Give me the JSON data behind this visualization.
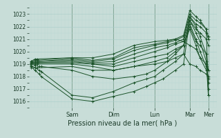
{
  "xlabel": "Pression niveau de la mer( hPa )",
  "bg_color": "#c8ddd8",
  "grid_color_major": "#a8ccc8",
  "grid_color_minor": "#b8d8d4",
  "line_color": "#1a5228",
  "ylim": [
    1015.5,
    1023.8
  ],
  "yticks": [
    1016,
    1017,
    1018,
    1019,
    1020,
    1021,
    1022,
    1023
  ],
  "xlim": [
    -0.05,
    4.5
  ],
  "day_labels": [
    "Sam",
    "Dim",
    "Lun",
    "Mar",
    "Mer"
  ],
  "day_positions": [
    1.0,
    2.0,
    3.0,
    3.85,
    4.3
  ],
  "vlines": [
    1.0,
    2.0,
    3.0,
    3.85,
    4.3
  ],
  "lines": [
    {
      "x": [
        0.0,
        0.1,
        0.2,
        0.25,
        1.0,
        1.5,
        2.0,
        2.5,
        2.8,
        3.0,
        3.2,
        3.5,
        3.7,
        3.85,
        4.0,
        4.1,
        4.25,
        4.3
      ],
      "y": [
        1018.8,
        1018.5,
        1018.2,
        1018.0,
        1016.2,
        1016.0,
        1016.4,
        1016.8,
        1017.2,
        1017.5,
        1017.8,
        1018.5,
        1019.0,
        1022.5,
        1021.5,
        1020.8,
        1019.2,
        1016.5
      ]
    },
    {
      "x": [
        0.0,
        0.1,
        0.2,
        0.25,
        1.0,
        1.5,
        2.0,
        2.5,
        2.8,
        3.0,
        3.2,
        3.5,
        3.7,
        3.85,
        4.0,
        4.1,
        4.25,
        4.3
      ],
      "y": [
        1018.9,
        1018.7,
        1018.5,
        1018.4,
        1016.5,
        1016.3,
        1016.8,
        1017.5,
        1017.8,
        1018.0,
        1018.5,
        1019.2,
        1019.8,
        1022.8,
        1022.0,
        1021.2,
        1019.8,
        1017.0
      ]
    },
    {
      "x": [
        0.0,
        0.1,
        0.2,
        0.25,
        1.0,
        1.5,
        2.0,
        2.5,
        2.8,
        3.0,
        3.3,
        3.5,
        3.7,
        3.85,
        4.0,
        4.1,
        4.25,
        4.3
      ],
      "y": [
        1019.0,
        1018.9,
        1018.8,
        1018.8,
        1018.5,
        1018.0,
        1017.8,
        1018.0,
        1018.2,
        1018.5,
        1019.2,
        1019.8,
        1020.5,
        1022.2,
        1021.0,
        1020.0,
        1018.8,
        1017.5
      ]
    },
    {
      "x": [
        0.0,
        0.1,
        0.15,
        1.0,
        1.5,
        2.0,
        2.5,
        3.0,
        3.3,
        3.5,
        3.7,
        3.85,
        4.0,
        4.1,
        4.25,
        4.3
      ],
      "y": [
        1019.0,
        1019.0,
        1019.0,
        1019.0,
        1018.8,
        1018.5,
        1018.8,
        1019.2,
        1019.5,
        1020.0,
        1020.5,
        1021.8,
        1020.5,
        1019.5,
        1018.5,
        1018.0
      ]
    },
    {
      "x": [
        0.0,
        0.1,
        0.15,
        1.0,
        1.5,
        2.0,
        2.5,
        3.0,
        3.3,
        3.5,
        3.7,
        3.85,
        4.0,
        4.1,
        4.25,
        4.3
      ],
      "y": [
        1019.0,
        1019.1,
        1019.1,
        1019.1,
        1019.0,
        1018.8,
        1019.2,
        1019.6,
        1019.8,
        1020.2,
        1020.5,
        1022.0,
        1020.8,
        1020.5,
        1019.8,
        1018.5
      ]
    },
    {
      "x": [
        0.0,
        0.1,
        0.15,
        1.0,
        1.5,
        2.0,
        2.5,
        3.0,
        3.3,
        3.5,
        3.7,
        3.85,
        4.0,
        4.1,
        4.25,
        4.3
      ],
      "y": [
        1019.1,
        1019.1,
        1019.1,
        1019.2,
        1019.0,
        1019.0,
        1019.5,
        1020.0,
        1020.3,
        1020.6,
        1020.8,
        1022.5,
        1021.8,
        1021.5,
        1021.0,
        1020.5
      ]
    },
    {
      "x": [
        0.0,
        0.1,
        0.15,
        1.0,
        1.5,
        2.0,
        2.5,
        3.0,
        3.3,
        3.5,
        3.7,
        3.85,
        4.0,
        4.1,
        4.25,
        4.3
      ],
      "y": [
        1019.1,
        1019.2,
        1019.2,
        1019.3,
        1019.1,
        1019.2,
        1019.8,
        1020.3,
        1020.5,
        1020.7,
        1021.0,
        1022.8,
        1022.2,
        1022.0,
        1021.5,
        1021.0
      ]
    },
    {
      "x": [
        0.0,
        0.1,
        0.15,
        1.0,
        1.5,
        2.0,
        2.5,
        3.0,
        3.3,
        3.5,
        3.7,
        3.85,
        4.0,
        4.1,
        4.25,
        4.3
      ],
      "y": [
        1019.1,
        1019.2,
        1019.2,
        1019.4,
        1019.2,
        1019.4,
        1020.1,
        1020.5,
        1020.7,
        1020.9,
        1021.2,
        1023.0,
        1022.5,
        1022.3,
        1021.8,
        1021.2
      ]
    },
    {
      "x": [
        0.0,
        0.1,
        0.15,
        1.0,
        1.5,
        2.0,
        2.5,
        3.0,
        3.3,
        3.5,
        3.7,
        3.85,
        4.0,
        4.1,
        4.25,
        4.3
      ],
      "y": [
        1019.2,
        1019.3,
        1019.3,
        1019.5,
        1019.3,
        1019.5,
        1020.3,
        1020.6,
        1020.8,
        1021.0,
        1021.3,
        1023.3,
        1022.8,
        1022.5,
        1021.8,
        1016.5
      ]
    },
    {
      "x": [
        0.0,
        0.1,
        0.15,
        1.0,
        1.5,
        2.0,
        2.5,
        3.0,
        3.3,
        3.5,
        3.7,
        3.85,
        4.0,
        4.1,
        4.25,
        4.3
      ],
      "y": [
        1019.2,
        1019.4,
        1019.4,
        1019.5,
        1019.5,
        1019.8,
        1020.5,
        1020.8,
        1020.9,
        1021.0,
        1020.8,
        1020.5,
        1020.2,
        1019.5,
        1019.0,
        1018.5
      ]
    },
    {
      "x": [
        0.0,
        0.1,
        0.15,
        1.0,
        1.5,
        2.0,
        2.5,
        3.0,
        3.3,
        3.5,
        3.7,
        3.85,
        4.0,
        4.1,
        4.25,
        4.3
      ],
      "y": [
        1018.7,
        1018.7,
        1018.7,
        1018.8,
        1018.5,
        1018.5,
        1018.8,
        1019.0,
        1019.2,
        1019.5,
        1019.8,
        1019.0,
        1018.8,
        1018.5,
        1018.2,
        1017.8
      ]
    }
  ]
}
